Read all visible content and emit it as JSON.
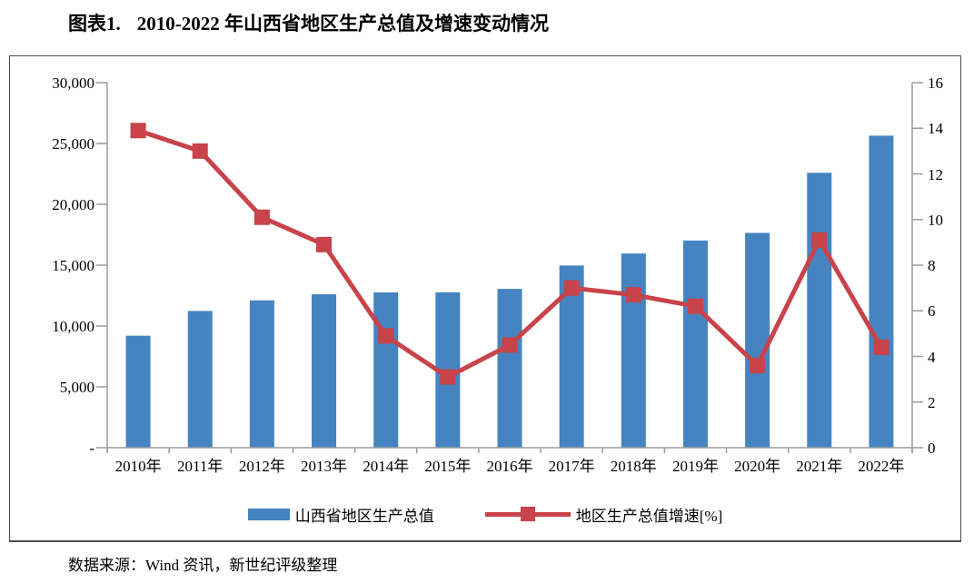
{
  "title": {
    "prefix": "图表1.",
    "text": "2010-2022 年山西省地区生产总值及增速变动情况"
  },
  "source_note": "数据来源：Wind 资讯，新世纪评级整理",
  "colors": {
    "bar": "#4584C1",
    "line": "#C8434A",
    "axis": "#9B9B9B",
    "text": "#000000",
    "frame_border": "#4d4d4d"
  },
  "legend": [
    {
      "label": "山西省地区生产总值",
      "type": "bar"
    },
    {
      "label": "地区生产总值增速[%]",
      "type": "line"
    }
  ],
  "chart_data": {
    "type": "bar",
    "title": "2010-2022 年山西省地区生产总值及增速变动情况",
    "categories": [
      "2010年",
      "2011年",
      "2012年",
      "2013年",
      "2014年",
      "2015年",
      "2016年",
      "2017年",
      "2018年",
      "2019年",
      "2020年",
      "2021年",
      "2022年"
    ],
    "series": [
      {
        "name": "山西省地区生产总值",
        "type": "bar",
        "axis": "left",
        "values": [
          9200.9,
          11237.6,
          12112.8,
          12602.2,
          12761.5,
          12766.5,
          13050.4,
          14973.5,
          15958.1,
          17026.7,
          17651.9,
          22590.2,
          25642.6
        ]
      },
      {
        "name": "地区生产总值增速[%]",
        "type": "line",
        "axis": "right",
        "values": [
          13.9,
          13.0,
          10.1,
          8.9,
          4.9,
          3.1,
          4.5,
          7.0,
          6.7,
          6.2,
          3.6,
          9.1,
          4.4
        ]
      }
    ],
    "left_axis": {
      "min": 0,
      "max": 30000,
      "step": 5000,
      "tick_labels": [
        "30,000",
        "25,000",
        "20,000",
        "15,000",
        "10,000",
        "5,000",
        "-"
      ]
    },
    "right_axis": {
      "min": 0,
      "max": 16,
      "step": 2,
      "tick_labels": [
        "16",
        "14",
        "12",
        "10",
        "8",
        "6",
        "4",
        "2",
        "0"
      ]
    },
    "grid": false,
    "legend_position": "bottom"
  }
}
